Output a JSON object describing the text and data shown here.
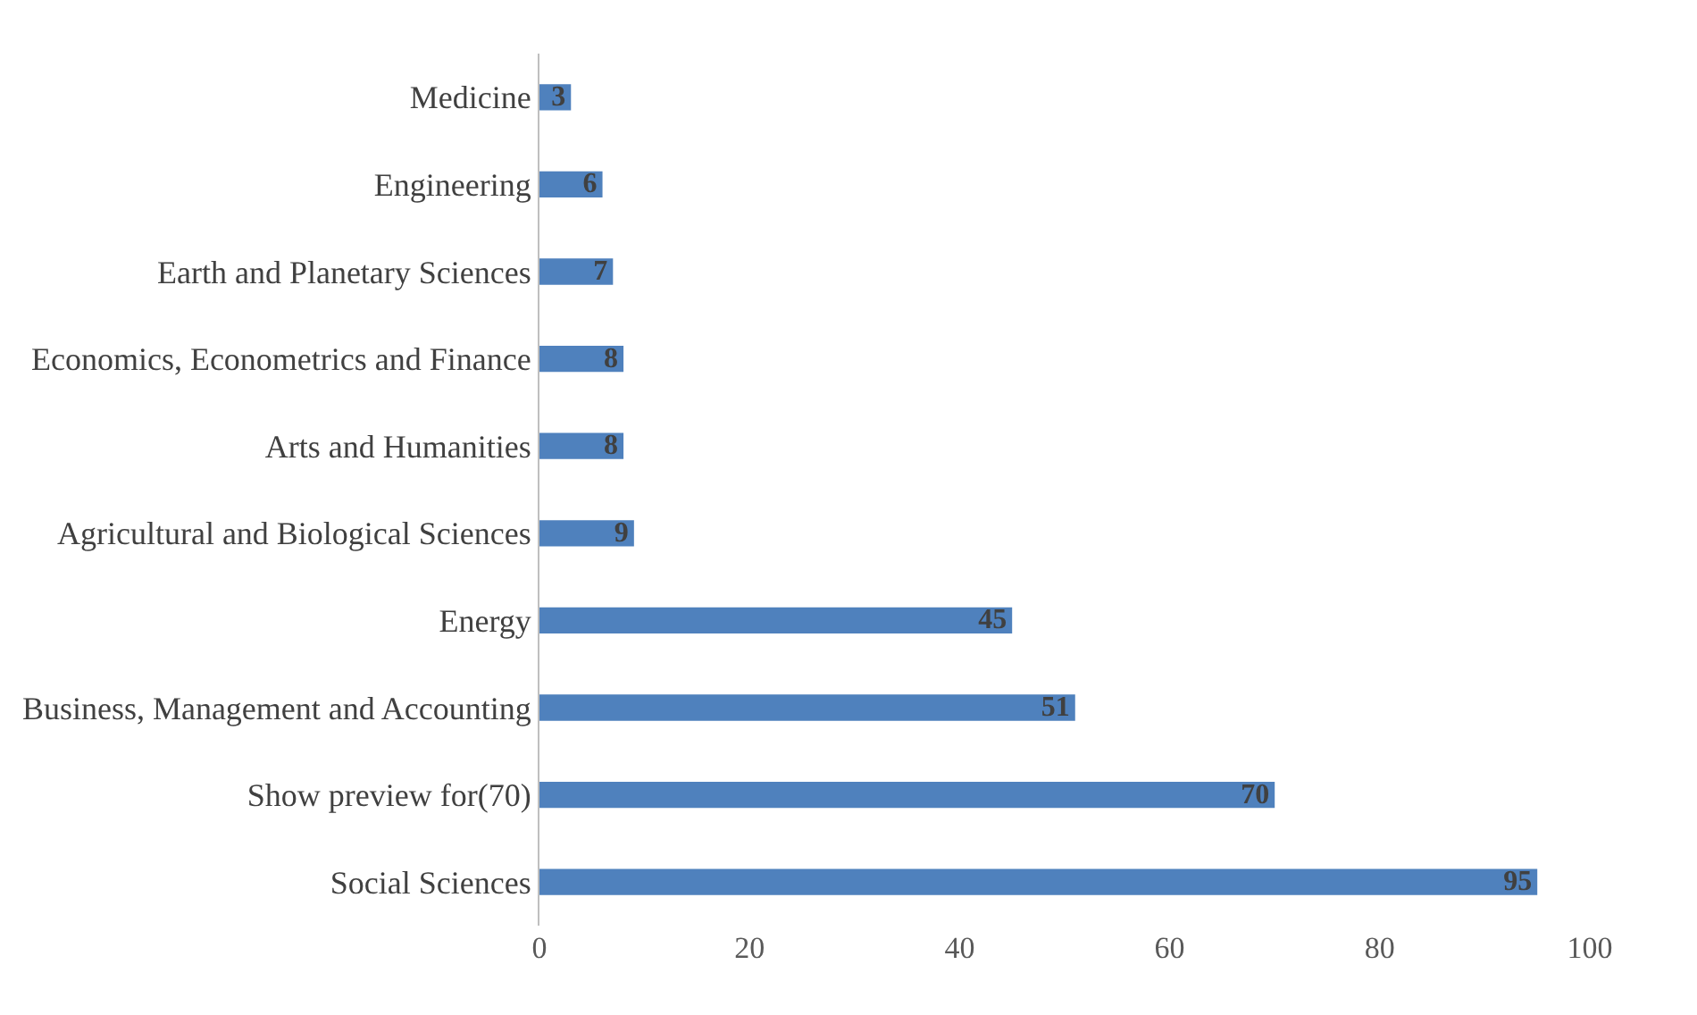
{
  "chart_data": {
    "type": "bar",
    "orientation": "horizontal",
    "categories": [
      "Medicine",
      "Engineering",
      "Earth and Planetary Sciences",
      "Economics, Econometrics and Finance",
      "Arts and Humanities",
      "Agricultural and Biological Sciences",
      "Energy",
      "Business, Management and Accounting",
      "Show preview for(70)",
      "Social Sciences"
    ],
    "values": [
      3,
      6,
      7,
      8,
      8,
      9,
      45,
      51,
      70,
      95
    ],
    "color": "#4f81bd",
    "xlim": [
      0,
      100
    ],
    "xticks": [
      0,
      20,
      40,
      60,
      80,
      100
    ],
    "data_labels": true
  }
}
